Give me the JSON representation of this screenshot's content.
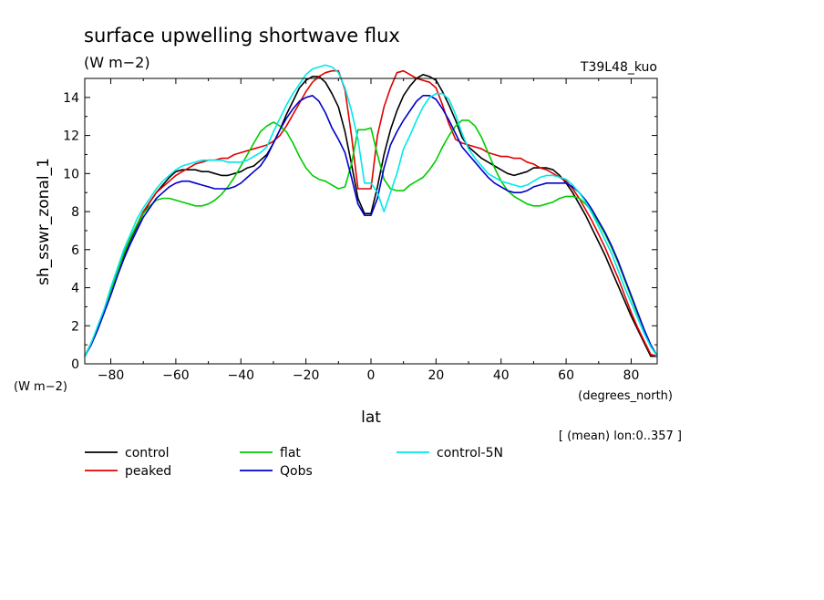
{
  "chart_data": {
    "type": "line",
    "title": "surface upwelling shortwave flux",
    "units_label": "(W m−2)",
    "experiment_label": "T39L48_kuo",
    "ylabel": "sh_sswr_zonal_1",
    "y_units": "(W m−2)",
    "xlabel": "lat",
    "x_units": "(degrees_north)",
    "footnote": "[ (mean) lon:0..357 ]",
    "xlim": [
      -88,
      88
    ],
    "ylim": [
      0,
      15
    ],
    "x_ticks": [
      -80,
      -60,
      -40,
      -20,
      0,
      20,
      40,
      60,
      80
    ],
    "x_tick_labels": [
      "−80",
      "−60",
      "−40",
      "−20",
      "0",
      "20",
      "40",
      "60",
      "80"
    ],
    "y_ticks": [
      0,
      2,
      4,
      6,
      8,
      10,
      12,
      14
    ],
    "y_tick_labels": [
      "0",
      "2",
      "4",
      "6",
      "8",
      "10",
      "12",
      "14"
    ],
    "x": [
      -88,
      -86,
      -84,
      -82,
      -80,
      -78,
      -76,
      -74,
      -72,
      -70,
      -68,
      -66,
      -64,
      -62,
      -60,
      -58,
      -56,
      -54,
      -52,
      -50,
      -48,
      -46,
      -44,
      -42,
      -40,
      -38,
      -36,
      -34,
      -32,
      -30,
      -28,
      -26,
      -24,
      -22,
      -20,
      -18,
      -16,
      -14,
      -12,
      -10,
      -8,
      -6,
      -4,
      -2,
      0,
      2,
      4,
      6,
      8,
      10,
      12,
      14,
      16,
      18,
      20,
      22,
      24,
      26,
      28,
      30,
      32,
      34,
      36,
      38,
      40,
      42,
      44,
      46,
      48,
      50,
      52,
      54,
      56,
      58,
      60,
      62,
      64,
      66,
      68,
      70,
      72,
      74,
      76,
      78,
      80,
      82,
      84,
      86,
      88
    ],
    "series": [
      {
        "name": "control",
        "color": "#000000",
        "values": [
          0.4,
          1.1,
          1.9,
          2.8,
          3.8,
          4.8,
          5.7,
          6.5,
          7.2,
          7.9,
          8.5,
          9.0,
          9.4,
          9.8,
          10.1,
          10.2,
          10.2,
          10.2,
          10.1,
          10.1,
          10.0,
          9.9,
          9.9,
          10.0,
          10.1,
          10.3,
          10.4,
          10.7,
          11.0,
          11.6,
          12.3,
          13.1,
          13.8,
          14.5,
          14.9,
          15.1,
          15.1,
          14.8,
          14.2,
          13.5,
          12.2,
          10.5,
          8.7,
          7.9,
          7.9,
          9.3,
          11.0,
          12.3,
          13.3,
          14.1,
          14.6,
          15.0,
          15.2,
          15.1,
          14.9,
          14.3,
          13.6,
          12.8,
          11.9,
          11.4,
          11.1,
          10.8,
          10.6,
          10.4,
          10.2,
          10.0,
          9.9,
          10.0,
          10.1,
          10.3,
          10.3,
          10.3,
          10.2,
          9.9,
          9.5,
          9.0,
          8.4,
          7.8,
          7.1,
          6.4,
          5.7,
          4.9,
          4.1,
          3.3,
          2.5,
          1.8,
          1.1,
          0.4,
          0.4
        ]
      },
      {
        "name": "peaked",
        "color": "#e00000",
        "values": [
          0.4,
          1.1,
          1.9,
          2.8,
          3.8,
          4.8,
          5.8,
          6.6,
          7.3,
          8.0,
          8.5,
          9.0,
          9.3,
          9.6,
          9.9,
          10.1,
          10.3,
          10.5,
          10.6,
          10.7,
          10.7,
          10.8,
          10.8,
          11.0,
          11.1,
          11.2,
          11.3,
          11.4,
          11.5,
          11.7,
          12.0,
          12.5,
          13.1,
          13.7,
          14.3,
          14.8,
          15.1,
          15.3,
          15.4,
          15.4,
          14.4,
          12.0,
          9.2,
          9.2,
          9.2,
          12.0,
          13.5,
          14.5,
          15.3,
          15.4,
          15.2,
          15.0,
          14.9,
          14.8,
          14.5,
          13.6,
          12.6,
          11.8,
          11.6,
          11.5,
          11.4,
          11.3,
          11.1,
          11.0,
          10.9,
          10.9,
          10.8,
          10.8,
          10.6,
          10.5,
          10.3,
          10.2,
          10.0,
          9.8,
          9.6,
          9.2,
          8.7,
          8.1,
          7.5,
          6.8,
          6.1,
          5.3,
          4.5,
          3.6,
          2.7,
          1.9,
          1.2,
          0.5,
          0.4
        ]
      },
      {
        "name": "flat",
        "color": "#00cc00",
        "values": [
          0.4,
          1.1,
          1.9,
          2.8,
          3.8,
          4.8,
          5.8,
          6.6,
          7.3,
          7.9,
          8.3,
          8.6,
          8.7,
          8.7,
          8.6,
          8.5,
          8.4,
          8.3,
          8.3,
          8.4,
          8.6,
          8.9,
          9.3,
          9.8,
          10.4,
          11.0,
          11.6,
          12.2,
          12.5,
          12.7,
          12.5,
          12.2,
          11.6,
          10.9,
          10.3,
          9.9,
          9.7,
          9.6,
          9.4,
          9.2,
          9.3,
          10.5,
          12.3,
          12.3,
          12.4,
          11.0,
          9.7,
          9.2,
          9.1,
          9.1,
          9.4,
          9.6,
          9.8,
          10.2,
          10.7,
          11.4,
          12.0,
          12.5,
          12.8,
          12.8,
          12.5,
          11.9,
          11.1,
          10.3,
          9.6,
          9.1,
          8.8,
          8.6,
          8.4,
          8.3,
          8.3,
          8.4,
          8.5,
          8.7,
          8.8,
          8.8,
          8.7,
          8.4,
          8.0,
          7.4,
          6.8,
          6.1,
          5.3,
          4.4,
          3.5,
          2.6,
          1.8,
          1.0,
          0.4
        ]
      },
      {
        "name": "Qobs",
        "color": "#0000cc",
        "values": [
          0.4,
          1.0,
          1.8,
          2.7,
          3.6,
          4.6,
          5.5,
          6.3,
          7.0,
          7.7,
          8.2,
          8.7,
          9.0,
          9.3,
          9.5,
          9.6,
          9.6,
          9.5,
          9.4,
          9.3,
          9.2,
          9.2,
          9.2,
          9.3,
          9.5,
          9.8,
          10.1,
          10.4,
          10.9,
          11.6,
          12.3,
          12.9,
          13.4,
          13.8,
          14.0,
          14.1,
          13.8,
          13.2,
          12.4,
          11.8,
          11.1,
          9.8,
          8.4,
          7.8,
          7.8,
          8.7,
          10.3,
          11.5,
          12.2,
          12.8,
          13.3,
          13.8,
          14.1,
          14.1,
          13.9,
          13.4,
          12.8,
          12.1,
          11.4,
          11.0,
          10.6,
          10.2,
          9.8,
          9.5,
          9.3,
          9.1,
          9.0,
          9.0,
          9.1,
          9.3,
          9.4,
          9.5,
          9.5,
          9.5,
          9.5,
          9.3,
          9.0,
          8.6,
          8.1,
          7.5,
          6.9,
          6.2,
          5.4,
          4.5,
          3.6,
          2.7,
          1.8,
          1.0,
          0.4
        ]
      },
      {
        "name": "control-5N",
        "color": "#00e8e8",
        "values": [
          0.4,
          1.1,
          2.0,
          2.9,
          4.0,
          5.0,
          6.0,
          6.8,
          7.6,
          8.2,
          8.7,
          9.2,
          9.6,
          9.9,
          10.2,
          10.4,
          10.5,
          10.6,
          10.7,
          10.7,
          10.7,
          10.7,
          10.6,
          10.6,
          10.6,
          10.7,
          10.9,
          11.1,
          11.4,
          12.2,
          12.9,
          13.6,
          14.2,
          14.7,
          15.2,
          15.5,
          15.6,
          15.7,
          15.6,
          15.3,
          14.5,
          13.3,
          11.8,
          9.5,
          9.5,
          9.0,
          8.0,
          9.0,
          10.0,
          11.3,
          12.0,
          12.8,
          13.5,
          14.0,
          14.2,
          14.2,
          13.9,
          13.1,
          12.1,
          11.3,
          10.8,
          10.4,
          10.0,
          9.8,
          9.6,
          9.5,
          9.4,
          9.3,
          9.4,
          9.6,
          9.8,
          9.9,
          9.9,
          9.8,
          9.7,
          9.4,
          9.0,
          8.5,
          7.9,
          7.2,
          6.5,
          5.8,
          4.9,
          4.0,
          3.2,
          2.4,
          1.6,
          0.9,
          0.4
        ]
      }
    ],
    "legend": [
      {
        "label": "control",
        "color": "#000000"
      },
      {
        "label": "peaked",
        "color": "#e00000"
      },
      {
        "label": "flat",
        "color": "#00cc00"
      },
      {
        "label": "Qobs",
        "color": "#0000cc"
      },
      {
        "label": "control-5N",
        "color": "#00e8e8"
      }
    ]
  }
}
